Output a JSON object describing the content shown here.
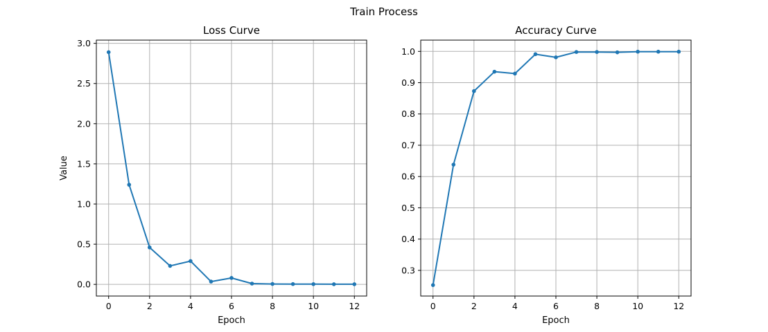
{
  "figure": {
    "suptitle": "Train Process"
  },
  "colors": {
    "series": "#1f77b4",
    "grid": "#b0b0b0"
  },
  "chart_data": [
    {
      "type": "line",
      "title": "Loss Curve",
      "xlabel": "Epoch",
      "ylabel": "Value",
      "xlim": [
        -0.6,
        12.6
      ],
      "ylim": [
        -0.145,
        3.04
      ],
      "xticks": [
        0,
        2,
        4,
        6,
        8,
        10,
        12
      ],
      "xtick_labels": [
        "0",
        "2",
        "4",
        "6",
        "8",
        "10",
        "12"
      ],
      "yticks": [
        0,
        0.5,
        1.0,
        1.5,
        2.0,
        2.5,
        3.0
      ],
      "ytick_labels": [
        "0.0",
        "0.5",
        "1.0",
        "1.5",
        "2.0",
        "2.5",
        "3.0"
      ],
      "grid": true,
      "x": [
        0,
        1,
        2,
        3,
        4,
        5,
        6,
        7,
        8,
        9,
        10,
        11,
        12
      ],
      "series": [
        {
          "values": [
            2.89,
            1.24,
            0.46,
            0.23,
            0.29,
            0.035,
            0.08,
            0.01,
            0.005,
            0.004,
            0.003,
            0.002,
            0.002
          ]
        }
      ]
    },
    {
      "type": "line",
      "title": "Accuracy Curve",
      "xlabel": "Epoch",
      "ylabel": "",
      "xlim": [
        -0.6,
        12.6
      ],
      "ylim": [
        0.218,
        1.036
      ],
      "xticks": [
        0,
        2,
        4,
        6,
        8,
        10,
        12
      ],
      "xtick_labels": [
        "0",
        "2",
        "4",
        "6",
        "8",
        "10",
        "12"
      ],
      "yticks": [
        0.3,
        0.4,
        0.5,
        0.6,
        0.7,
        0.8,
        0.9,
        1.0
      ],
      "ytick_labels": [
        "0.3",
        "0.4",
        "0.5",
        "0.6",
        "0.7",
        "0.8",
        "0.9",
        "1.0"
      ],
      "grid": true,
      "x": [
        0,
        1,
        2,
        3,
        4,
        5,
        6,
        7,
        8,
        9,
        10,
        11,
        12
      ],
      "series": [
        {
          "values": [
            0.253,
            0.638,
            0.873,
            0.935,
            0.929,
            0.991,
            0.981,
            0.998,
            0.998,
            0.997,
            0.999,
            0.999,
            0.999
          ]
        }
      ]
    }
  ]
}
